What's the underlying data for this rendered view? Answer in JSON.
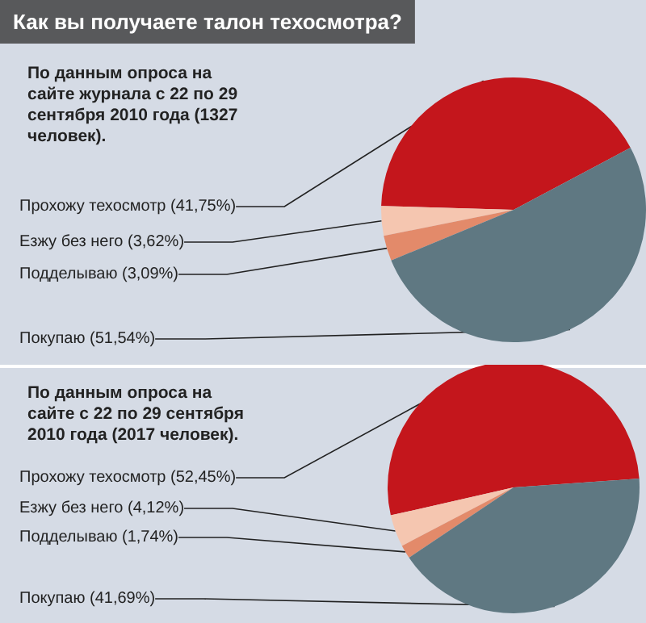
{
  "chart_data": [
    {
      "type": "pie",
      "title": "Как вы получаете талон техосмотра?",
      "subtitle": "По данным опроса на сайте журнала с 22 по 29 сентября 2010 года (1327 человек).",
      "categories": [
        "Прохожу техосмотр (41,75%)",
        "Езжу без него (3,62%)",
        "Подделываю (3,09%)",
        "Покупаю (51,54%)"
      ],
      "values": [
        41.75,
        3.62,
        3.09,
        51.54
      ],
      "colors": [
        "#c4161c",
        "#f5c6b0",
        "#e38a6a",
        "#5f7882"
      ]
    },
    {
      "type": "pie",
      "subtitle": "По данным опроса на сайте с 22 по 29 сентября 2010 года (2017 человек).",
      "categories": [
        "Прохожу техосмотр (52,45%)",
        "Езжу без него (4,12%)",
        "Подделываю (1,74%)",
        "Покупаю (41,69%)"
      ],
      "values": [
        52.45,
        4.12,
        1.74,
        41.69
      ],
      "colors": [
        "#c4161c",
        "#f5c6b0",
        "#e38a6a",
        "#5f7882"
      ]
    }
  ]
}
